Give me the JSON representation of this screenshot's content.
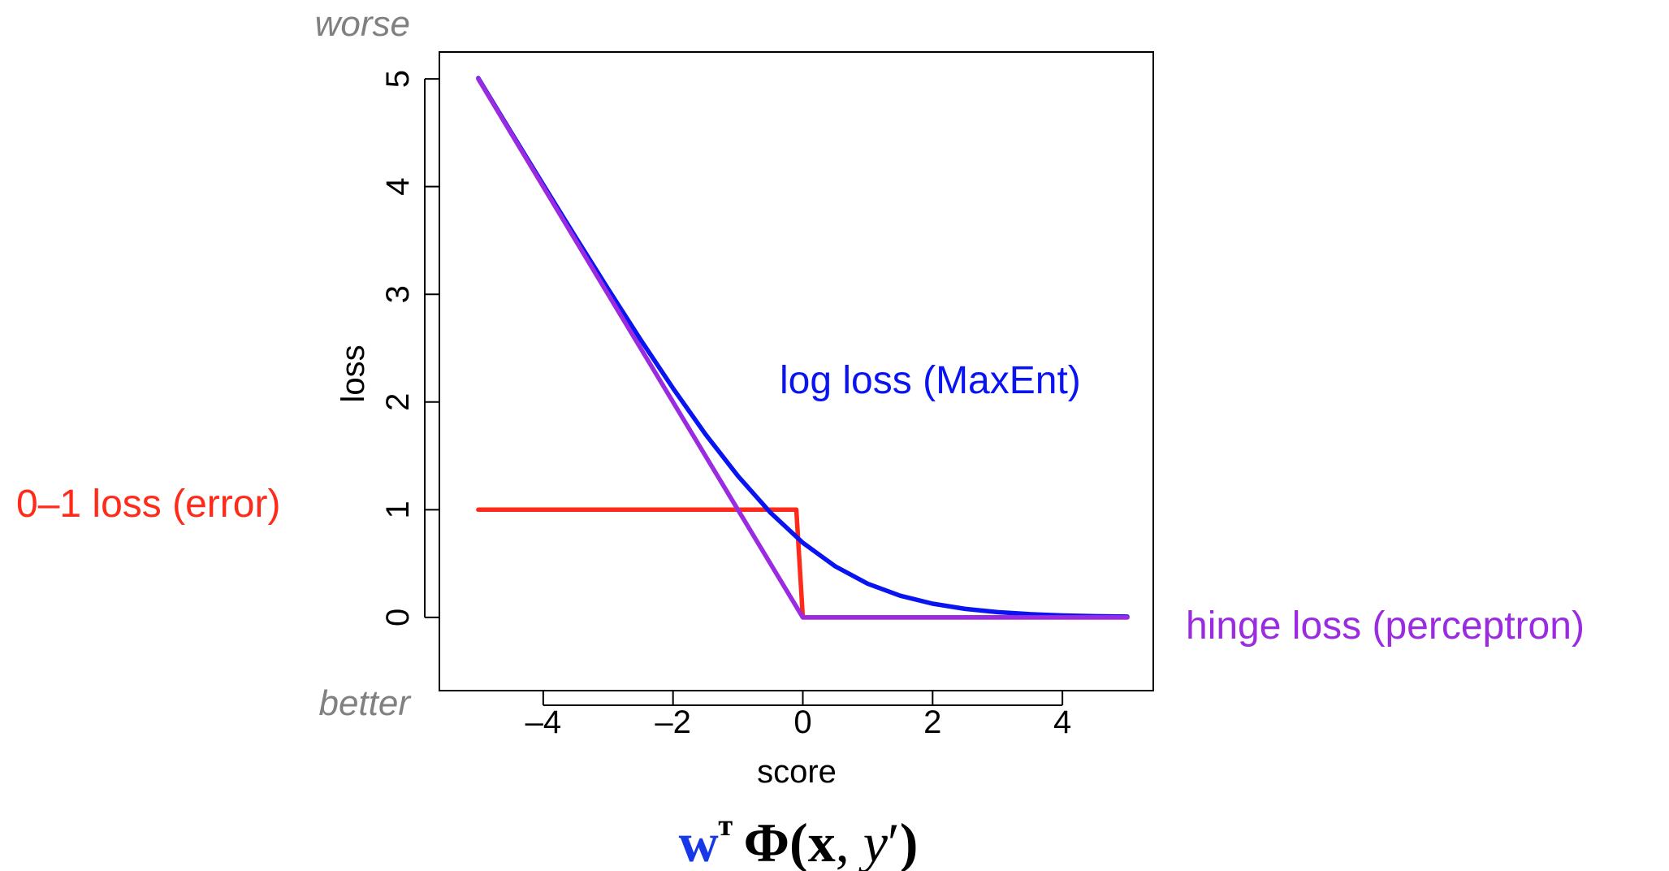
{
  "chart_data": {
    "type": "line",
    "xlabel": "score",
    "ylabel": "loss",
    "xlim": [
      -5.6,
      5.4
    ],
    "ylim": [
      -0.68,
      5.25
    ],
    "xticks": [
      -4,
      -2,
      0,
      2,
      4
    ],
    "xtick_labels": [
      "–4",
      "–2",
      "0",
      "2",
      "4"
    ],
    "yticks": [
      0,
      1,
      2,
      3,
      4,
      5
    ],
    "ytick_labels": [
      "0",
      "1",
      "2",
      "3",
      "4",
      "5"
    ],
    "grid": false,
    "legend": "none",
    "series": [
      {
        "name": "0–1 loss (error)",
        "color": "#ff2a1a",
        "x": [
          -5,
          -0.1,
          0,
          5
        ],
        "y": [
          1,
          1,
          0,
          0
        ]
      },
      {
        "name": "log loss (MaxEnt)",
        "color": "#0a14f0",
        "x": [
          -5,
          -4.5,
          -4,
          -3.5,
          -3,
          -2.5,
          -2,
          -1.5,
          -1,
          -0.5,
          0,
          0.5,
          1,
          1.5,
          2,
          2.5,
          3,
          3.5,
          4,
          4.5,
          5
        ],
        "y": [
          5.007,
          4.511,
          4.018,
          3.53,
          3.049,
          2.579,
          2.127,
          1.701,
          1.313,
          0.974,
          0.693,
          0.474,
          0.313,
          0.201,
          0.127,
          0.079,
          0.049,
          0.03,
          0.018,
          0.011,
          0.007
        ]
      },
      {
        "name": "hinge loss (perceptron)",
        "color": "#9a2be0",
        "x": [
          -5,
          0,
          5
        ],
        "y": [
          5,
          0,
          0
        ]
      }
    ]
  },
  "annotations": {
    "top_text": "worse",
    "bottom_text": "better",
    "formula": {
      "w": "w",
      "t": "ᵀ",
      "phi": "Φ(",
      "x": "x",
      "comma": ", ",
      "y": "y",
      "prime": "′",
      "close": ")"
    }
  }
}
